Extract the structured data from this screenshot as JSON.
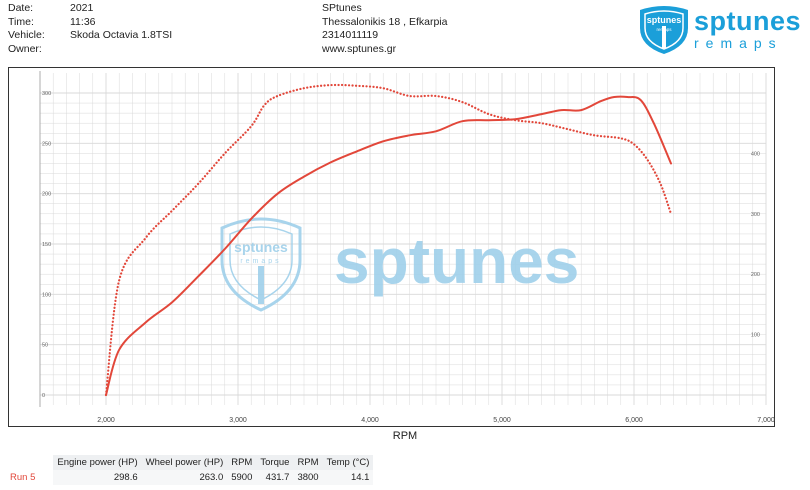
{
  "header": {
    "labels": [
      "Date:",
      "Time:",
      "Vehicle:",
      "Owner:"
    ],
    "values": [
      "2021",
      "11:36",
      "Skoda Octavia 1.8TSI",
      ""
    ],
    "company_lines": [
      "SPtunes",
      "Thessalonikis 18 , Efkarpia",
      "2314011119",
      "www.sptunes.gr"
    ]
  },
  "logo": {
    "word": "sptunes",
    "sub": "remaps",
    "badge_top": "sptunes",
    "badge_bottom": "remaps"
  },
  "watermark": {
    "text": "sptunes",
    "badge_top": "sptunes",
    "badge_bottom": "remaps"
  },
  "chart_data": {
    "type": "line",
    "xlabel": "RPM",
    "xlim": [
      1500,
      7000
    ],
    "x_ticks": [
      "2,000",
      "3,000",
      "4,000",
      "5,000",
      "6,000",
      "7,000"
    ],
    "x_tick_values": [
      2000,
      3000,
      4000,
      5000,
      6000,
      7000
    ],
    "y_left": {
      "ylim": [
        0,
        300
      ],
      "ticks": [
        "0",
        "50",
        "100",
        "150",
        "200",
        "250",
        "300"
      ],
      "tick_values": [
        0,
        50,
        100,
        150,
        200,
        250,
        300
      ]
    },
    "y_right": {
      "ylim": [
        0,
        500
      ],
      "ticks": [
        "100",
        "200",
        "300",
        "400"
      ],
      "tick_values": [
        100,
        200,
        300,
        400
      ]
    },
    "grid": true,
    "colors": {
      "series": "#e2473a",
      "grid": "#d9d9d9",
      "watermark": "#9fd0ea"
    },
    "series": [
      {
        "axis": "left",
        "style": "solid",
        "quantity": "power",
        "x": [
          2000,
          2100,
          2300,
          2500,
          2700,
          2900,
          3100,
          3300,
          3500,
          3700,
          3900,
          4100,
          4300,
          4500,
          4700,
          4900,
          5100,
          5300,
          5450,
          5600,
          5750,
          5850,
          5950,
          6050,
          6150,
          6280
        ],
        "y": [
          0,
          45,
          72,
          92,
          118,
          145,
          175,
          200,
          217,
          231,
          242,
          252,
          258,
          262,
          272,
          273,
          274,
          279,
          283,
          283,
          292,
          296,
          296,
          293,
          270,
          230
        ]
      },
      {
        "axis": "right",
        "style": "dotted",
        "quantity": "torque",
        "x": [
          2000,
          2100,
          2300,
          2500,
          2700,
          2900,
          3100,
          3200,
          3300,
          3500,
          3700,
          3900,
          4100,
          4300,
          4500,
          4700,
          4900,
          5100,
          5300,
          5500,
          5700,
          5900,
          6000,
          6100,
          6200,
          6280
        ],
        "y": [
          0,
          190,
          260,
          305,
          350,
          400,
          445,
          480,
          495,
          508,
          513,
          512,
          508,
          495,
          495,
          485,
          465,
          455,
          450,
          440,
          430,
          425,
          415,
          390,
          350,
          300
        ]
      }
    ]
  },
  "summary": {
    "headers": [
      "Engine power (HP)",
      "Wheel power (HP)",
      "RPM",
      "Torque",
      "RPM",
      "Temp (°C)"
    ],
    "rows": [
      {
        "run": "Run 5",
        "values": [
          "298.6",
          "263.0",
          "5900",
          "431.7",
          "3800",
          "14.1"
        ]
      }
    ]
  }
}
